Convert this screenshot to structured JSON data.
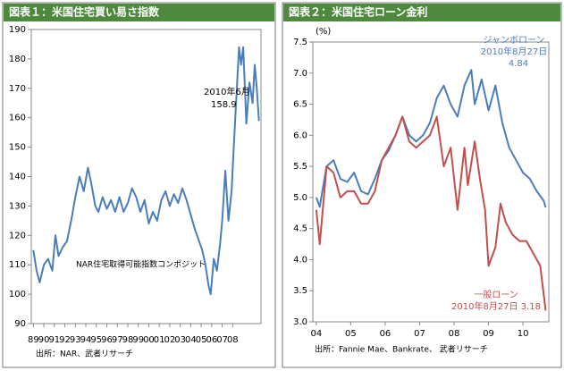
{
  "chart_data": [
    {
      "type": "line",
      "title": "図表１：米国住宅買い易さ指数",
      "x": [
        1989.0,
        1989.3,
        1989.6,
        1990.0,
        1990.4,
        1990.8,
        1991.1,
        1991.4,
        1991.8,
        1992.2,
        1992.6,
        1993.0,
        1993.4,
        1993.8,
        1994.2,
        1994.5,
        1994.9,
        1995.2,
        1995.6,
        1996.0,
        1996.4,
        1996.8,
        1997.2,
        1997.6,
        1998.0,
        1998.4,
        1998.8,
        1999.2,
        1999.6,
        2000.0,
        2000.4,
        2000.8,
        2001.2,
        2001.6,
        2002.0,
        2002.4,
        2002.8,
        2003.2,
        2003.6,
        2004.0,
        2004.4,
        2004.8,
        2005.1,
        2005.4,
        2005.7,
        2005.9,
        2006.2,
        2006.5,
        2006.8,
        2007.0,
        2007.3,
        2007.6,
        2007.9,
        2008.1,
        2008.4,
        2008.6,
        2008.8,
        2009.0,
        2009.3,
        2009.6,
        2009.9,
        2010.1,
        2010.3,
        2010.5
      ],
      "values": [
        115,
        108,
        104,
        110,
        112,
        108,
        120,
        113,
        116,
        118,
        125,
        133,
        140,
        135,
        143,
        138,
        130,
        128,
        133,
        129,
        132,
        128,
        133,
        128,
        131,
        136,
        133,
        128,
        132,
        124,
        128,
        125,
        132,
        135,
        130,
        134,
        131,
        136,
        132,
        127,
        122,
        118,
        115,
        110,
        103,
        100,
        112,
        108,
        117,
        125,
        142,
        125,
        135,
        150,
        170,
        184,
        178,
        184,
        158,
        172,
        165,
        178,
        170,
        158.9
      ],
      "color": "#4a7ebb",
      "xlim": [
        1988.8,
        2010.7
      ],
      "xticks": [
        {
          "value": 1989,
          "label": "89"
        },
        {
          "value": 1990,
          "label": "90"
        },
        {
          "value": 1991,
          "label": "91"
        },
        {
          "value": 1992,
          "label": "92"
        },
        {
          "value": 1993,
          "label": "93"
        },
        {
          "value": 1994,
          "label": "94"
        },
        {
          "value": 1995,
          "label": "95"
        },
        {
          "value": 1996,
          "label": "96"
        },
        {
          "value": 1997,
          "label": "97"
        },
        {
          "value": 1998,
          "label": "98"
        },
        {
          "value": 1999,
          "label": "99"
        },
        {
          "value": 2000,
          "label": "00"
        },
        {
          "value": 2001,
          "label": "01"
        },
        {
          "value": 2002,
          "label": "02"
        },
        {
          "value": 2003,
          "label": "03"
        },
        {
          "value": 2004,
          "label": "04"
        },
        {
          "value": 2005,
          "label": "05"
        },
        {
          "value": 2006,
          "label": "06"
        },
        {
          "value": 2007,
          "label": "07"
        },
        {
          "value": 2008,
          "label": "08"
        }
      ],
      "ylim": [
        90,
        190
      ],
      "yticks": [
        90,
        100,
        110,
        120,
        130,
        140,
        150,
        160,
        170,
        180,
        190
      ],
      "grid": false,
      "annotations": [
        {
          "lines": [
            "2010年6月",
            "158.9"
          ]
        },
        {
          "lines": [
            "NAR住宅取得可能指数コンポジット"
          ]
        }
      ],
      "source": "出所：NAR、武者リサーチ"
    },
    {
      "type": "line",
      "title": "図表２：米国住宅ローン金利",
      "ylabel": "(%)",
      "series": [
        {
          "name": "ジャンボローン",
          "color": "#4a7ebb",
          "x": [
            2004.0,
            2004.1,
            2004.3,
            2004.5,
            2004.7,
            2004.9,
            2005.1,
            2005.3,
            2005.5,
            2005.7,
            2005.9,
            2006.1,
            2006.3,
            2006.5,
            2006.7,
            2006.9,
            2007.1,
            2007.3,
            2007.5,
            2007.7,
            2007.9,
            2008.1,
            2008.3,
            2008.5,
            2008.6,
            2008.8,
            2009.0,
            2009.2,
            2009.4,
            2009.6,
            2009.8,
            2010.0,
            2010.2,
            2010.4,
            2010.6,
            2010.66
          ],
          "values": [
            5.0,
            4.85,
            5.5,
            5.6,
            5.3,
            5.25,
            5.4,
            5.1,
            5.05,
            5.3,
            5.6,
            5.75,
            6.0,
            6.3,
            6.0,
            5.9,
            6.0,
            6.2,
            6.6,
            6.8,
            6.5,
            6.3,
            6.8,
            7.05,
            6.5,
            6.9,
            6.4,
            6.8,
            6.2,
            5.8,
            5.6,
            5.4,
            5.3,
            5.1,
            4.95,
            4.84
          ],
          "annotation": [
            "2010年8月27日",
            "4.84"
          ]
        },
        {
          "name": "一般ローン",
          "color": "#c0504d",
          "x": [
            2004.0,
            2004.1,
            2004.3,
            2004.5,
            2004.7,
            2004.9,
            2005.1,
            2005.3,
            2005.5,
            2005.7,
            2005.9,
            2006.1,
            2006.3,
            2006.5,
            2006.7,
            2006.9,
            2007.1,
            2007.3,
            2007.5,
            2007.7,
            2007.9,
            2008.1,
            2008.3,
            2008.4,
            2008.6,
            2008.75,
            2008.9,
            2009.0,
            2009.2,
            2009.35,
            2009.5,
            2009.7,
            2009.9,
            2010.1,
            2010.3,
            2010.5,
            2010.66
          ],
          "values": [
            4.8,
            4.25,
            5.5,
            5.4,
            5.0,
            5.1,
            5.1,
            4.9,
            4.9,
            5.1,
            5.6,
            5.8,
            6.0,
            6.3,
            5.9,
            5.8,
            5.9,
            6.0,
            6.3,
            5.5,
            5.8,
            4.8,
            5.8,
            5.2,
            5.9,
            5.3,
            4.8,
            3.9,
            4.2,
            4.9,
            4.6,
            4.4,
            4.3,
            4.3,
            4.1,
            3.9,
            3.18
          ],
          "annotation": [
            "2010年8月27日 3.18"
          ]
        }
      ],
      "xlim": [
        2003.9,
        2010.75
      ],
      "xticks": [
        {
          "value": 2004,
          "label": "04"
        },
        {
          "value": 2005,
          "label": "05"
        },
        {
          "value": 2006,
          "label": "06"
        },
        {
          "value": 2007,
          "label": "07"
        },
        {
          "value": 2008,
          "label": "08"
        },
        {
          "value": 2009,
          "label": "09"
        },
        {
          "value": 2010,
          "label": "10"
        }
      ],
      "ylim": [
        3.0,
        7.5
      ],
      "yticks": [
        {
          "value": 3,
          "label": "3.0"
        },
        3.5,
        {
          "value": 4,
          "label": "4.0"
        },
        4.5,
        {
          "value": 5,
          "label": "5.0"
        },
        5.5,
        {
          "value": 6,
          "label": "6.0"
        },
        6.5,
        {
          "value": 7,
          "label": "7.0"
        },
        7.5
      ],
      "grid": false,
      "source": "出所：Fannie Mae、Bankrate、 武者リサーチ"
    }
  ]
}
